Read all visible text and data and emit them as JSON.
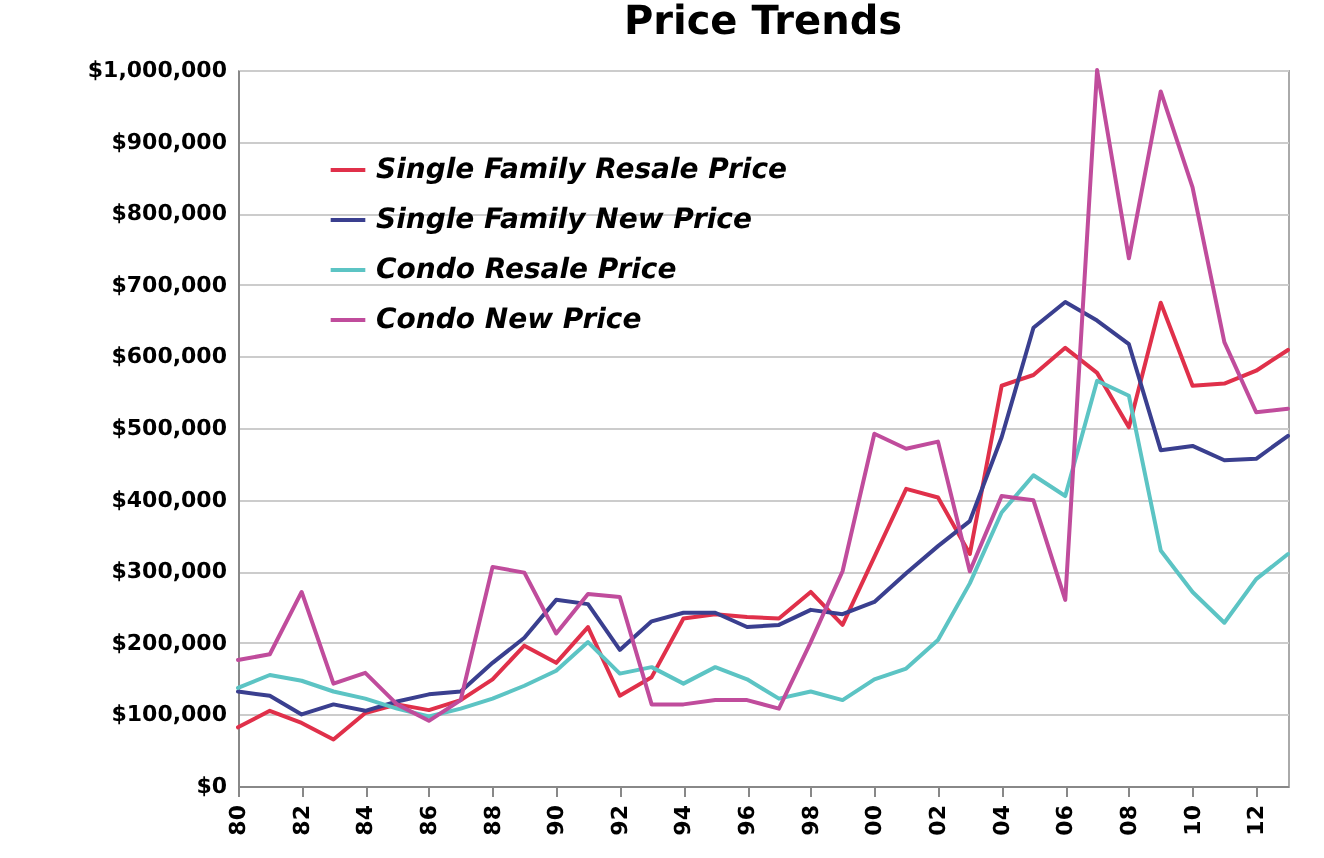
{
  "chart_data": {
    "type": "line",
    "title": "Price Trends",
    "x": [
      1980,
      1981,
      1982,
      1983,
      1984,
      1985,
      1986,
      1987,
      1988,
      1989,
      1990,
      1991,
      1992,
      1993,
      1994,
      1995,
      1996,
      1997,
      1998,
      1999,
      2000,
      2001,
      2002,
      2003,
      2004,
      2005,
      2006,
      2007,
      2008,
      2009,
      2010,
      2011,
      2012,
      2013
    ],
    "xlim": [
      1980,
      2013
    ],
    "xticks": [
      {
        "value": 1980,
        "label": "80"
      },
      {
        "value": 1982,
        "label": "82"
      },
      {
        "value": 1984,
        "label": "84"
      },
      {
        "value": 1986,
        "label": "86"
      },
      {
        "value": 1988,
        "label": "88"
      },
      {
        "value": 1990,
        "label": "90"
      },
      {
        "value": 1992,
        "label": "92"
      },
      {
        "value": 1994,
        "label": "94"
      },
      {
        "value": 1996,
        "label": "96"
      },
      {
        "value": 1998,
        "label": "98"
      },
      {
        "value": 2000,
        "label": "00"
      },
      {
        "value": 2002,
        "label": "02"
      },
      {
        "value": 2004,
        "label": "04"
      },
      {
        "value": 2006,
        "label": "06"
      },
      {
        "value": 2008,
        "label": "08"
      },
      {
        "value": 2010,
        "label": "10"
      },
      {
        "value": 2012,
        "label": "12"
      }
    ],
    "ylim": [
      0,
      1000000
    ],
    "yticks": [
      {
        "value": 0,
        "label": "$0"
      },
      {
        "value": 100000,
        "label": "$100,000"
      },
      {
        "value": 200000,
        "label": "$200,000"
      },
      {
        "value": 300000,
        "label": "$300,000"
      },
      {
        "value": 400000,
        "label": "$400,000"
      },
      {
        "value": 500000,
        "label": "$500,000"
      },
      {
        "value": 600000,
        "label": "$600,000"
      },
      {
        "value": 700000,
        "label": "$700,000"
      },
      {
        "value": 800000,
        "label": "$800,000"
      },
      {
        "value": 900000,
        "label": "$900,000"
      },
      {
        "value": 1000000,
        "label": "$1,000,000"
      }
    ],
    "grid": "y",
    "legend": "top left",
    "marker": "none",
    "line_style": "solid",
    "series": [
      {
        "name": "Single Family Resale Price",
        "color": "#e0304a",
        "values": [
          82000,
          105000,
          88000,
          65000,
          102000,
          114000,
          106000,
          120000,
          149000,
          196000,
          172000,
          222000,
          126000,
          152000,
          234000,
          240000,
          236000,
          234000,
          271000,
          225000,
          320000,
          415000,
          403000,
          324000,
          559000,
          574000,
          612000,
          577000,
          501000,
          675000,
          559000,
          562000,
          580000,
          609000
        ]
      },
      {
        "name": "Single Family New Price",
        "color": "#3a3f8f",
        "values": [
          132000,
          126000,
          100000,
          114000,
          105000,
          118000,
          128000,
          132000,
          172000,
          207000,
          260000,
          254000,
          190000,
          230000,
          242000,
          242000,
          222000,
          225000,
          246000,
          240000,
          257000,
          297000,
          335000,
          370000,
          487000,
          640000,
          676000,
          650000,
          617000,
          469000,
          475000,
          455000,
          457000,
          489000
        ]
      },
      {
        "name": "Condo Resale Price",
        "color": "#5cc4c4",
        "values": [
          137000,
          155000,
          147000,
          132000,
          122000,
          108000,
          97000,
          108000,
          122000,
          140000,
          161000,
          201000,
          157000,
          166000,
          143000,
          166000,
          149000,
          122000,
          132000,
          120000,
          149000,
          164000,
          204000,
          283000,
          382000,
          434000,
          405000,
          566000,
          545000,
          329000,
          271000,
          228000,
          289000,
          324000
        ]
      },
      {
        "name": "Condo New Price",
        "color": "#c04c9c",
        "values": [
          176000,
          184000,
          271000,
          143000,
          158000,
          114000,
          91000,
          120000,
          306000,
          298000,
          213000,
          268000,
          264000,
          114000,
          114000,
          120000,
          120000,
          108000,
          201000,
          300000,
          492000,
          471000,
          481000,
          300000,
          405000,
          399000,
          260000,
          1000000,
          737000,
          970000,
          836000,
          620000,
          522000,
          527000
        ]
      }
    ]
  }
}
